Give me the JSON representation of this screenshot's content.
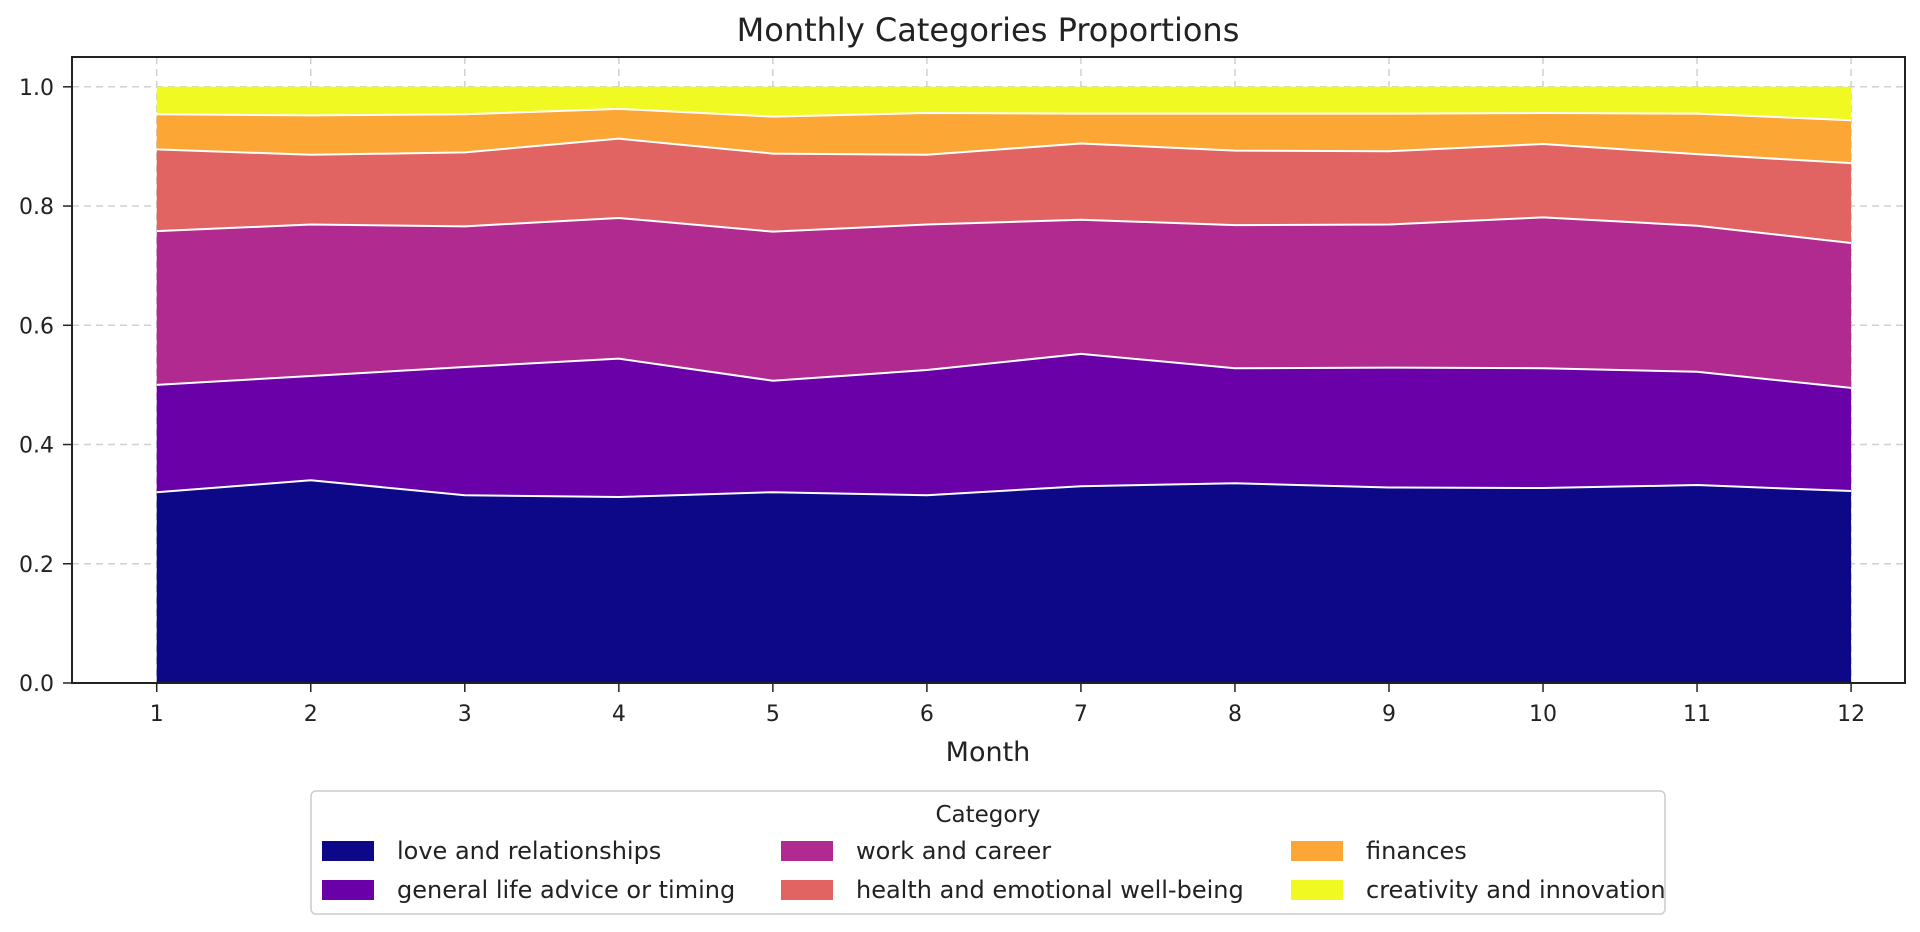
{
  "chart_data": {
    "type": "area",
    "stacked": true,
    "title": "Monthly Categories Proportions",
    "xlabel": "Month",
    "ylabel": "",
    "x": [
      1,
      2,
      3,
      4,
      5,
      6,
      7,
      8,
      9,
      10,
      11,
      12
    ],
    "xlim": [
      0.45,
      12.35
    ],
    "ylim": [
      0,
      1.05
    ],
    "yticks": [
      0.0,
      0.2,
      0.4,
      0.6,
      0.8,
      1.0
    ],
    "ytick_labels": [
      "0.0",
      "0.2",
      "0.4",
      "0.6",
      "0.8",
      "1.0"
    ],
    "xtick_labels": [
      "1",
      "2",
      "3",
      "4",
      "5",
      "6",
      "7",
      "8",
      "9",
      "10",
      "11",
      "12"
    ],
    "grid": true,
    "legend": {
      "title": "Category",
      "placement": "bottom-center",
      "columns": 3
    },
    "series": [
      {
        "name": "love and relationships",
        "color": "#0d0887",
        "values": [
          0.32,
          0.34,
          0.315,
          0.312,
          0.32,
          0.315,
          0.33,
          0.335,
          0.328,
          0.327,
          0.332,
          0.322
        ]
      },
      {
        "name": "general life advice or timing",
        "color": "#6a00a8",
        "values": [
          0.18,
          0.175,
          0.215,
          0.232,
          0.187,
          0.21,
          0.222,
          0.193,
          0.201,
          0.201,
          0.19,
          0.173
        ]
      },
      {
        "name": "work and career",
        "color": "#b12a90",
        "values": [
          0.258,
          0.254,
          0.236,
          0.236,
          0.25,
          0.244,
          0.225,
          0.24,
          0.24,
          0.253,
          0.245,
          0.243
        ]
      },
      {
        "name": "health and emotional well-being",
        "color": "#e16462",
        "values": [
          0.137,
          0.117,
          0.124,
          0.133,
          0.131,
          0.117,
          0.128,
          0.125,
          0.123,
          0.123,
          0.12,
          0.134
        ]
      },
      {
        "name": "finances",
        "color": "#fca636",
        "values": [
          0.059,
          0.066,
          0.064,
          0.05,
          0.062,
          0.07,
          0.05,
          0.062,
          0.063,
          0.052,
          0.068,
          0.072
        ]
      },
      {
        "name": "creativity and innovation",
        "color": "#f0f921",
        "values": [
          0.046,
          0.048,
          0.046,
          0.037,
          0.05,
          0.044,
          0.045,
          0.045,
          0.045,
          0.044,
          0.045,
          0.056
        ]
      }
    ]
  }
}
